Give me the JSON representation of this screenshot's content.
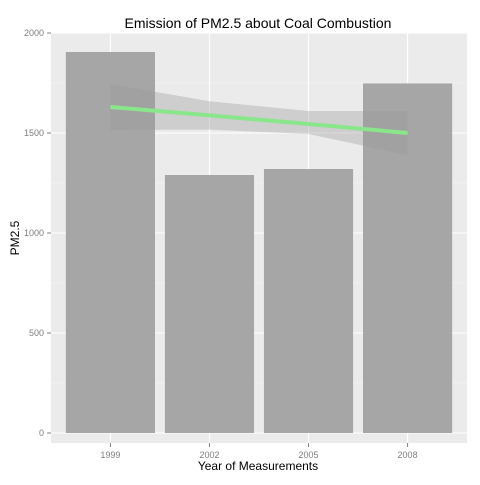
{
  "chart_data": {
    "type": "bar",
    "title": "Emission of PM2.5 about Coal Combustion",
    "xlabel": "Year of Measurements",
    "ylabel": "PM2.5",
    "categories": [
      "1999",
      "2002",
      "2005",
      "2008"
    ],
    "values": [
      1905,
      1290,
      1320,
      1748
    ],
    "ylim": [
      -50,
      2000
    ],
    "yticks": [
      0,
      500,
      1000,
      1500,
      2000
    ],
    "grid": true,
    "trend": {
      "type": "linear",
      "values": [
        1630,
        1588,
        1545,
        1500
      ],
      "ci_lower": [
        1515,
        1517,
        1495,
        1390
      ],
      "ci_upper": [
        1745,
        1659,
        1610,
        1610
      ]
    }
  },
  "colors": {
    "panel": "#ebebeb",
    "grid_major": "#ffffff",
    "bar": "#a6a6a6",
    "trend_line": "#8ae68a",
    "ribbon": "#999999"
  }
}
